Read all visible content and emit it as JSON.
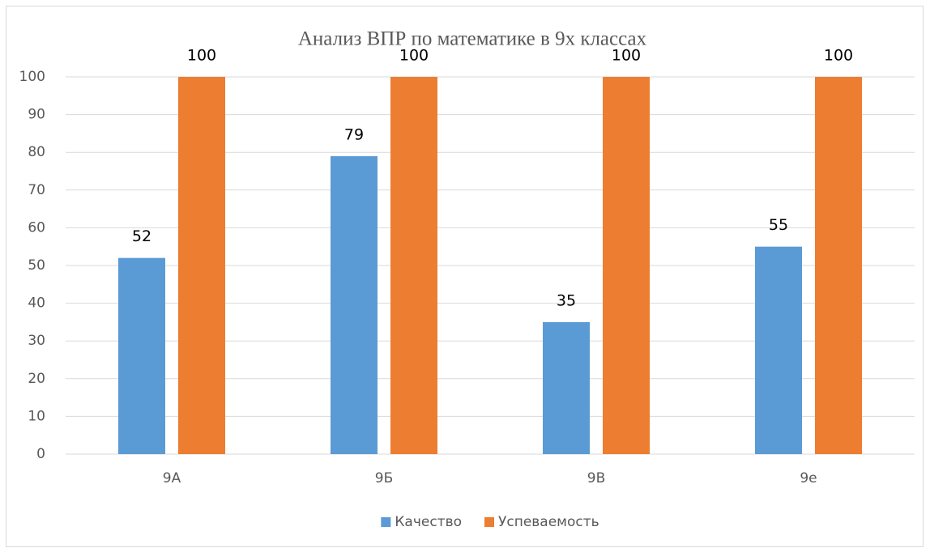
{
  "chart_data": {
    "type": "bar",
    "title": "Анализ ВПР по математике в 9х классах",
    "categories": [
      "9А",
      "9Б",
      "9В",
      "9е"
    ],
    "series": [
      {
        "name": "Качество",
        "color": "#5b9bd5",
        "values": [
          52,
          79,
          35,
          55
        ]
      },
      {
        "name": "Успеваемость",
        "color": "#ed7d31",
        "values": [
          100,
          100,
          100,
          100
        ]
      }
    ],
    "ylim": [
      0,
      100
    ],
    "yticks": [
      0,
      10,
      20,
      30,
      40,
      50,
      60,
      70,
      80,
      90,
      100
    ],
    "grid": true,
    "legend": "bottom",
    "data_labels": true
  }
}
